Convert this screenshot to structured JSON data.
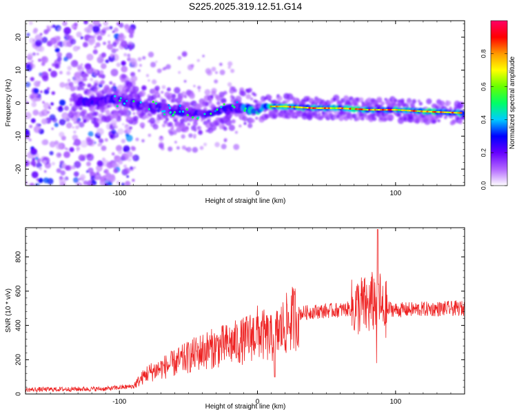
{
  "title": "S225.2025.319.12.51.G14",
  "chart_data": [
    {
      "type": "heatmap",
      "xlabel": "Height of straight line (km)",
      "ylabel": "Frequency (Hz)",
      "xlim": [
        -168,
        150
      ],
      "ylim": [
        -25,
        25
      ],
      "xticks": [
        -100,
        0,
        100
      ],
      "yticks": [
        -20,
        -10,
        0,
        10,
        20
      ],
      "colorbar": {
        "label": "Normalized spectral amplitude",
        "range": [
          0,
          1
        ],
        "ticks": [
          "0.0",
          "0.2",
          "0.4",
          "0.6",
          "0.8"
        ],
        "colormap": [
          "#ffffff",
          "#b266ff",
          "#6600ff",
          "#0000ff",
          "#00ccff",
          "#00ff66",
          "#66ff00",
          "#ffff00",
          "#ff9900",
          "#ff0000",
          "#ff0066"
        ]
      },
      "ridge": {
        "x": [
          -130,
          -100,
          -80,
          -60,
          -40,
          -20,
          -10,
          0,
          5,
          20,
          40,
          60,
          80,
          100,
          120,
          150
        ],
        "frequency": [
          0,
          1,
          -1,
          -2,
          -3,
          -2,
          -1,
          -3,
          -1,
          -1,
          -1.5,
          -1.5,
          -2,
          -2,
          -2.5,
          -3
        ]
      }
    },
    {
      "type": "line",
      "xlabel": "Height of straight line (km)",
      "ylabel": "SNR (10 * v/v)",
      "xlim": [
        -168,
        150
      ],
      "ylim": [
        0,
        970
      ],
      "xticks": [
        -100,
        0,
        100
      ],
      "yticks": [
        0,
        200,
        400,
        600,
        800
      ],
      "color": "#ee2222",
      "envelope": {
        "x": [
          -168,
          -140,
          -110,
          -90,
          -80,
          -60,
          -40,
          -25,
          -10,
          0,
          10,
          20,
          30,
          40,
          60,
          70,
          75,
          80,
          85,
          87,
          90,
          95,
          100,
          120,
          150
        ],
        "y": [
          25,
          28,
          30,
          45,
          120,
          180,
          250,
          280,
          310,
          360,
          320,
          400,
          470,
          480,
          490,
          500,
          520,
          505,
          550,
          620,
          480,
          500,
          490,
          495,
          500
        ]
      }
    }
  ]
}
